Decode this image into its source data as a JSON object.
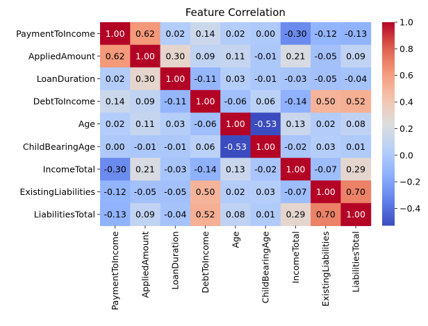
{
  "chart_data": {
    "type": "heatmap",
    "title": "Feature Correlation",
    "rows": [
      "PaymentToIncome",
      "AppliedAmount",
      "LoanDuration",
      "DebtToIncome",
      "Age",
      "ChildBearingAge",
      "IncomeTotal",
      "ExistingLiabilities",
      "LiabilitiesTotal"
    ],
    "columns": [
      "PaymentToIncome",
      "AppliedAmount",
      "LoanDuration",
      "DebtToIncome",
      "Age",
      "ChildBearingAge",
      "IncomeTotal",
      "ExistingLiabilities",
      "LiabilitiesTotal"
    ],
    "values": [
      [
        1.0,
        0.62,
        0.02,
        0.14,
        0.02,
        -0.0,
        -0.3,
        -0.12,
        -0.13
      ],
      [
        0.62,
        1.0,
        0.3,
        0.09,
        0.11,
        -0.01,
        0.21,
        -0.05,
        0.09
      ],
      [
        0.02,
        0.3,
        1.0,
        -0.11,
        0.03,
        -0.01,
        -0.03,
        -0.05,
        -0.04
      ],
      [
        0.14,
        0.09,
        -0.11,
        1.0,
        -0.06,
        0.06,
        -0.14,
        0.5,
        0.52
      ],
      [
        0.02,
        0.11,
        0.03,
        -0.06,
        1.0,
        -0.53,
        0.13,
        0.02,
        0.08
      ],
      [
        -0.0,
        -0.01,
        -0.01,
        0.06,
        -0.53,
        1.0,
        -0.02,
        0.03,
        0.01
      ],
      [
        -0.3,
        0.21,
        -0.03,
        -0.14,
        0.13,
        -0.02,
        1.0,
        -0.07,
        0.29
      ],
      [
        -0.12,
        -0.05,
        -0.05,
        0.5,
        0.02,
        0.03,
        -0.07,
        1.0,
        0.7
      ],
      [
        -0.13,
        0.09,
        -0.04,
        0.52,
        0.08,
        0.01,
        0.29,
        0.7,
        1.0
      ]
    ],
    "value_format": "2 decimals",
    "colormap": "coolwarm",
    "colorbar": {
      "range": [
        -0.53,
        1.0
      ],
      "ticks": [
        1.0,
        0.8,
        0.6,
        0.4,
        0.2,
        0.0,
        -0.2,
        -0.4
      ],
      "tick_labels": [
        "1.0",
        "0.8",
        "0.6",
        "0.4",
        "0.2",
        "0.0",
        "−0.2",
        "−0.4"
      ],
      "placement": "right"
    }
  }
}
